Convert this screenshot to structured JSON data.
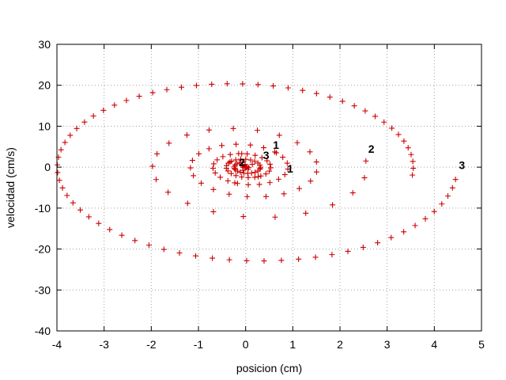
{
  "chart_data": {
    "type": "scatter",
    "title": "",
    "xlabel": "posicion (cm)",
    "ylabel": "velocidad (cm/s)",
    "xlim": [
      -4,
      5
    ],
    "ylim": [
      -40,
      30
    ],
    "xticks": [
      -4,
      -3,
      -2,
      -1,
      0,
      1,
      2,
      3,
      4,
      5
    ],
    "yticks": [
      -40,
      -30,
      -20,
      -10,
      0,
      10,
      20,
      30
    ],
    "grid": true,
    "legend": "none",
    "marker": "+",
    "colors": {
      "series": "#cc0000",
      "grid": "#a0a0a0",
      "axes": "#000000"
    },
    "series": [
      {
        "x0": 0.65,
        "v0": 3.5,
        "omega": 5.4,
        "gamma": 0.45,
        "n": 30,
        "dt": 0.5
      },
      {
        "x0": 2.55,
        "v0": 1.5,
        "omega": 5.4,
        "gamma": 0.45,
        "n": 100,
        "dt": 0.055
      },
      {
        "x0": 4.45,
        "v0": -3,
        "omega": 5.4,
        "gamma": 0.2,
        "n": 72,
        "dt": 0.0161
      }
    ],
    "annotations": [
      {
        "text": "1",
        "x": 0.58,
        "y": 4.5
      },
      {
        "text": "1",
        "x": 0.88,
        "y": -1.3
      },
      {
        "text": "2",
        "x": 2.6,
        "y": 3.5
      },
      {
        "text": "2",
        "x": -0.14,
        "y": 0.2
      },
      {
        "text": "3",
        "x": 4.52,
        "y": -0.5
      },
      {
        "text": "3",
        "x": 0.37,
        "y": 2.0
      }
    ]
  }
}
